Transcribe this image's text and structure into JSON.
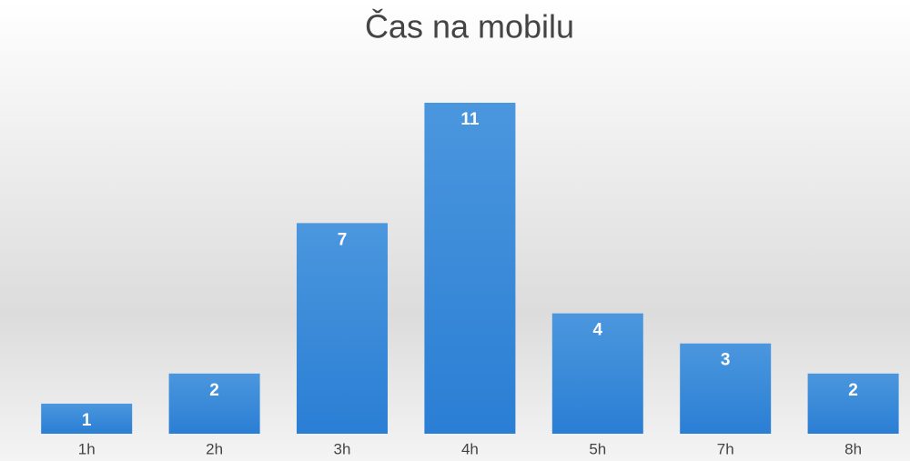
{
  "chart_data": {
    "type": "bar",
    "title": "Čas na mobilu",
    "categories": [
      "1h",
      "2h",
      "3h",
      "4h",
      "5h",
      "7h",
      "8h"
    ],
    "values": [
      1,
      2,
      7,
      11,
      4,
      3,
      2
    ],
    "color": "#3a8ad9"
  }
}
